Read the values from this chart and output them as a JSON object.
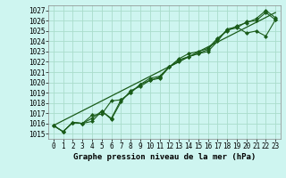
{
  "title": "Graphe pression niveau de la mer (hPa)",
  "bg_color": "#cef5f0",
  "grid_color": "#aaddcc",
  "line_color": "#1a5c1a",
  "marker_color": "#1a5c1a",
  "xlim": [
    -0.5,
    23.5
  ],
  "ylim": [
    1014.5,
    1027.5
  ],
  "yticks": [
    1015,
    1016,
    1017,
    1018,
    1019,
    1020,
    1021,
    1022,
    1023,
    1024,
    1025,
    1026,
    1027
  ],
  "xticks": [
    0,
    1,
    2,
    3,
    4,
    5,
    6,
    7,
    8,
    9,
    10,
    11,
    12,
    13,
    14,
    15,
    16,
    17,
    18,
    19,
    20,
    21,
    22,
    23
  ],
  "series1": [
    1015.8,
    1015.2,
    1016.1,
    1016.0,
    1016.2,
    1017.2,
    1016.5,
    1018.3,
    1019.0,
    1019.8,
    1020.2,
    1020.5,
    1021.5,
    1022.2,
    1022.5,
    1022.8,
    1023.2,
    1024.2,
    1025.1,
    1025.3,
    1025.9,
    1026.0,
    1026.8,
    1026.1
  ],
  "series2": [
    1015.8,
    1015.2,
    1016.1,
    1016.0,
    1016.8,
    1016.9,
    1018.2,
    1018.3,
    1019.0,
    1019.8,
    1020.4,
    1020.6,
    1021.5,
    1022.0,
    1022.5,
    1022.8,
    1023.0,
    1024.0,
    1025.2,
    1025.4,
    1024.8,
    1025.0,
    1024.5,
    1026.1
  ],
  "series3": [
    1015.8,
    1015.2,
    1016.1,
    1016.0,
    1016.5,
    1017.2,
    1016.4,
    1018.1,
    1019.2,
    1019.6,
    1020.2,
    1020.4,
    1021.5,
    1022.3,
    1022.8,
    1023.0,
    1023.3,
    1024.3,
    1025.0,
    1025.5,
    1025.8,
    1026.2,
    1027.0,
    1026.3
  ],
  "trend_x": [
    0,
    23
  ],
  "trend_y": [
    1015.8,
    1026.8
  ],
  "tick_fontsize": 5.5,
  "xlabel_fontsize": 6.5
}
